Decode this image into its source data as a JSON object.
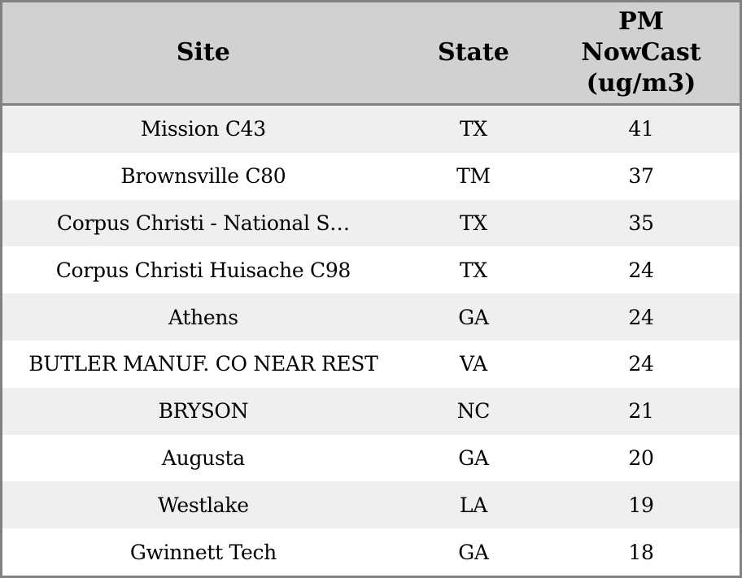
{
  "table": {
    "columns": [
      {
        "id": "site",
        "label": "Site"
      },
      {
        "id": "state",
        "label": "State"
      },
      {
        "id": "pm",
        "label": "PM NowCast (ug/m3)"
      }
    ],
    "rows": [
      {
        "site": "Mission C43",
        "state": "TX",
        "pm": "41"
      },
      {
        "site": "Brownsville C80",
        "state": "TM",
        "pm": "37"
      },
      {
        "site": "Corpus Christi - National S…",
        "state": "TX",
        "pm": "35"
      },
      {
        "site": "Corpus Christi Huisache C98",
        "state": "TX",
        "pm": "24"
      },
      {
        "site": "Athens",
        "state": "GA",
        "pm": "24"
      },
      {
        "site": "BUTLER MANUF. CO NEAR REST",
        "state": "VA",
        "pm": "24"
      },
      {
        "site": "BRYSON",
        "state": "NC",
        "pm": "21"
      },
      {
        "site": "Augusta",
        "state": "GA",
        "pm": "20"
      },
      {
        "site": "Westlake",
        "state": "LA",
        "pm": "19"
      },
      {
        "site": "Gwinnett Tech",
        "state": "GA",
        "pm": "18"
      }
    ]
  },
  "colors": {
    "header_bg": "#d1d1d1",
    "row_alt_bg": "#efefef",
    "row_bg": "#ffffff",
    "border": "#818181",
    "text": "#000000"
  },
  "chart_data": {
    "type": "table",
    "columns": [
      "Site",
      "State",
      "PM NowCast (ug/m3)"
    ],
    "rows": [
      [
        "Mission C43",
        "TX",
        41
      ],
      [
        "Brownsville C80",
        "TM",
        37
      ],
      [
        "Corpus Christi - National S…",
        "TX",
        35
      ],
      [
        "Corpus Christi Huisache C98",
        "TX",
        24
      ],
      [
        "Athens",
        "GA",
        24
      ],
      [
        "BUTLER MANUF. CO NEAR REST",
        "VA",
        24
      ],
      [
        "BRYSON",
        "NC",
        21
      ],
      [
        "Augusta",
        "GA",
        20
      ],
      [
        "Westlake",
        "LA",
        19
      ],
      [
        "Gwinnett Tech",
        "GA",
        18
      ]
    ]
  }
}
